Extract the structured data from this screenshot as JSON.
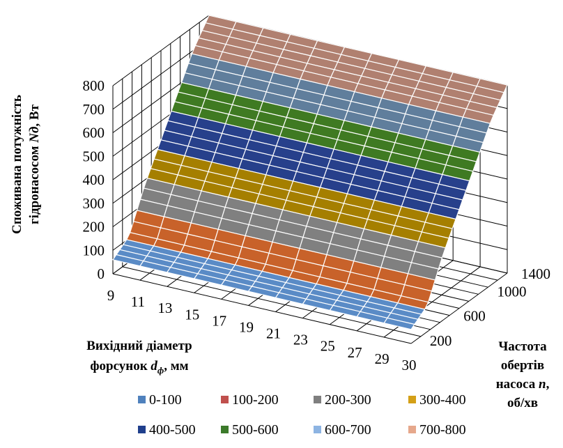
{
  "chart_data": {
    "type": "surface",
    "y_axis": {
      "label_line1": "Споживана потужність",
      "label_line2_a": "гідронасосом",
      "label_line2_b": "Nд",
      "label_line2_c": ", Вт",
      "ticks": [
        "0",
        "100",
        "200",
        "300",
        "400",
        "500",
        "600",
        "700",
        "800"
      ],
      "range": [
        0,
        800
      ]
    },
    "x_axis": {
      "label_line1": "Вихідний діаметр",
      "label_line2_a": "форсунок",
      "label_line2_b": "d",
      "label_line2_sub": "ф",
      "label_line2_c": ", мм",
      "ticks": [
        "9",
        "11",
        "13",
        "15",
        "17",
        "19",
        "21",
        "23",
        "25",
        "27",
        "29",
        "30"
      ]
    },
    "z_axis": {
      "label_line1": "Частота",
      "label_line2": "обертів",
      "label_line3_a": "насоса",
      "label_line3_b": "n",
      "label_line3_c": ",",
      "label_line4": "об/хв",
      "ticks": [
        "200",
        "600",
        "1000",
        "1400"
      ]
    },
    "n_values": [
      200,
      400,
      600,
      800,
      1000,
      1200,
      1400
    ],
    "power_values": [
      60,
      110,
      280,
      420,
      560,
      700,
      800
    ],
    "legend": [
      {
        "label": "0-100",
        "color": "#4F81BD"
      },
      {
        "label": "100-200",
        "color": "#C0504D"
      },
      {
        "label": "200-300",
        "color": "#7F7F7F"
      },
      {
        "label": "300-400",
        "color": "#D4A017"
      },
      {
        "label": "400-500",
        "color": "#1F3F8C"
      },
      {
        "label": "500-600",
        "color": "#3C7A2A"
      },
      {
        "label": "600-700",
        "color": "#8DB4E2"
      },
      {
        "label": "700-800",
        "color": "#E6A88C"
      }
    ],
    "band_colors": {
      "0-100": "#5A8BC6",
      "100-200": "#C8622A",
      "200-300": "#808080",
      "300-400": "#A57F00",
      "400-500": "#27408B",
      "500-600": "#3F7A22",
      "600-700": "#607E9C",
      "700-800": "#B08070"
    }
  }
}
